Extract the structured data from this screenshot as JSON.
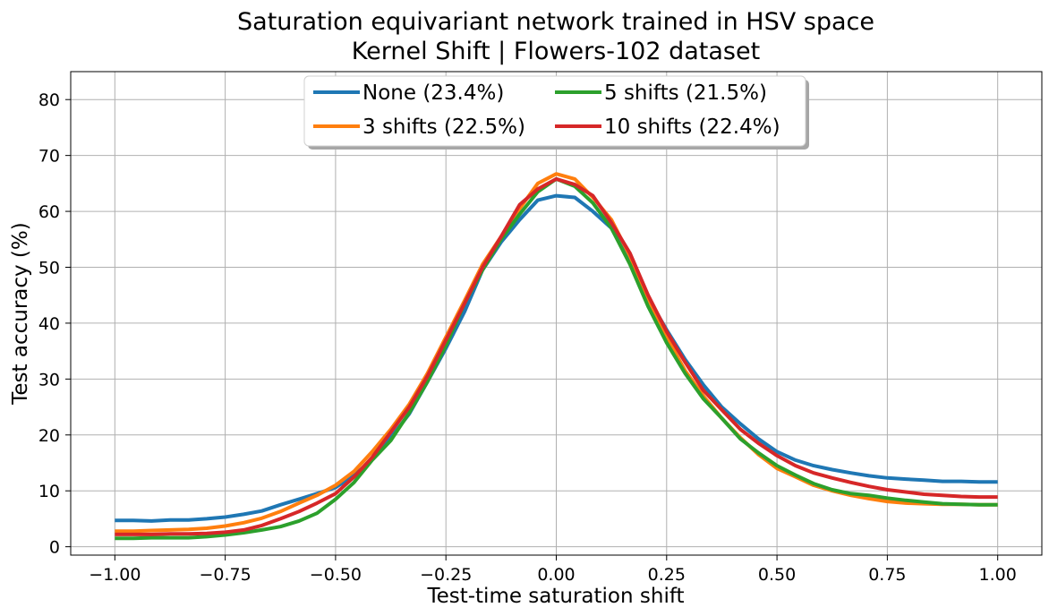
{
  "chart_data": {
    "type": "line",
    "title": [
      "Saturation equivariant network trained in HSV space",
      "Kernel Shift | Flowers-102 dataset"
    ],
    "xlabel": "Test-time saturation shift",
    "ylabel": "Test accuracy (%)",
    "xlim": [
      -1.1,
      1.1
    ],
    "ylim": [
      -1.5,
      85
    ],
    "xticks": [
      -1.0,
      -0.75,
      -0.5,
      -0.25,
      0.0,
      0.25,
      0.5,
      0.75,
      1.0
    ],
    "xtick_labels": [
      "−1.00",
      "−0.75",
      "−0.50",
      "−0.25",
      "0.00",
      "0.25",
      "0.50",
      "0.75",
      "1.00"
    ],
    "yticks": [
      0,
      10,
      20,
      30,
      40,
      50,
      60,
      70,
      80
    ],
    "ytick_labels": [
      "0",
      "10",
      "20",
      "30",
      "40",
      "50",
      "60",
      "70",
      "80"
    ],
    "grid": true,
    "legend_position": "top-center",
    "x": [
      -1.0,
      -0.958,
      -0.917,
      -0.875,
      -0.833,
      -0.792,
      -0.75,
      -0.708,
      -0.667,
      -0.625,
      -0.583,
      -0.542,
      -0.5,
      -0.458,
      -0.417,
      -0.375,
      -0.333,
      -0.292,
      -0.25,
      -0.208,
      -0.167,
      -0.125,
      -0.083,
      -0.042,
      0.0,
      0.042,
      0.083,
      0.125,
      0.167,
      0.208,
      0.25,
      0.292,
      0.333,
      0.375,
      0.417,
      0.458,
      0.5,
      0.542,
      0.583,
      0.625,
      0.667,
      0.708,
      0.75,
      0.792,
      0.833,
      0.875,
      0.917,
      0.958,
      1.0
    ],
    "series": [
      {
        "name": "None (23.4%)",
        "color": "#1f77b4",
        "values": [
          4.7,
          4.7,
          4.6,
          4.8,
          4.8,
          5.0,
          5.3,
          5.8,
          6.4,
          7.5,
          8.5,
          9.5,
          10.6,
          12.8,
          15.6,
          19.5,
          23.8,
          29.5,
          35.5,
          42.0,
          49.5,
          54.5,
          58.5,
          62.0,
          62.8,
          62.5,
          60.0,
          57.0,
          51.0,
          44.5,
          38.8,
          33.5,
          29.0,
          25.0,
          22.0,
          19.3,
          17.0,
          15.5,
          14.5,
          13.8,
          13.2,
          12.7,
          12.3,
          12.1,
          11.9,
          11.7,
          11.7,
          11.6,
          11.6
        ]
      },
      {
        "name": "3 shifts (22.5%)",
        "color": "#ff7f0e",
        "values": [
          2.8,
          2.8,
          2.9,
          3.0,
          3.1,
          3.3,
          3.7,
          4.3,
          5.1,
          6.3,
          7.8,
          9.2,
          11.0,
          13.5,
          17.0,
          21.0,
          25.5,
          31.0,
          37.5,
          44.0,
          50.5,
          55.5,
          60.5,
          65.0,
          66.7,
          65.8,
          62.5,
          58.5,
          52.0,
          44.5,
          37.5,
          31.5,
          27.0,
          23.0,
          19.5,
          16.5,
          14.0,
          12.5,
          11.0,
          10.0,
          9.2,
          8.6,
          8.1,
          7.8,
          7.7,
          7.6,
          7.6,
          7.5,
          7.5
        ]
      },
      {
        "name": "5 shifts (21.5%)",
        "color": "#2ca02c",
        "values": [
          1.5,
          1.5,
          1.6,
          1.6,
          1.6,
          1.8,
          2.1,
          2.5,
          3.0,
          3.6,
          4.6,
          6.0,
          8.5,
          11.5,
          15.5,
          19.0,
          24.0,
          29.5,
          36.0,
          43.5,
          49.5,
          55.0,
          59.5,
          63.5,
          65.8,
          64.5,
          61.5,
          57.0,
          50.5,
          43.0,
          36.5,
          31.0,
          26.5,
          23.0,
          19.3,
          16.8,
          14.5,
          12.8,
          11.3,
          10.2,
          9.5,
          9.2,
          8.7,
          8.3,
          8.0,
          7.7,
          7.6,
          7.5,
          7.5
        ]
      },
      {
        "name": "10 shifts (22.4%)",
        "color": "#d62728",
        "values": [
          2.2,
          2.2,
          2.2,
          2.3,
          2.3,
          2.4,
          2.6,
          3.0,
          3.8,
          5.0,
          6.3,
          7.8,
          9.5,
          12.5,
          16.0,
          20.5,
          25.0,
          30.5,
          37.0,
          43.5,
          50.0,
          55.5,
          61.2,
          64.0,
          65.8,
          64.8,
          62.8,
          58.0,
          52.5,
          45.0,
          38.5,
          33.0,
          28.0,
          24.5,
          21.0,
          18.5,
          16.3,
          14.5,
          13.2,
          12.3,
          11.5,
          10.8,
          10.2,
          9.8,
          9.4,
          9.2,
          9.0,
          8.9,
          8.9
        ]
      }
    ]
  }
}
